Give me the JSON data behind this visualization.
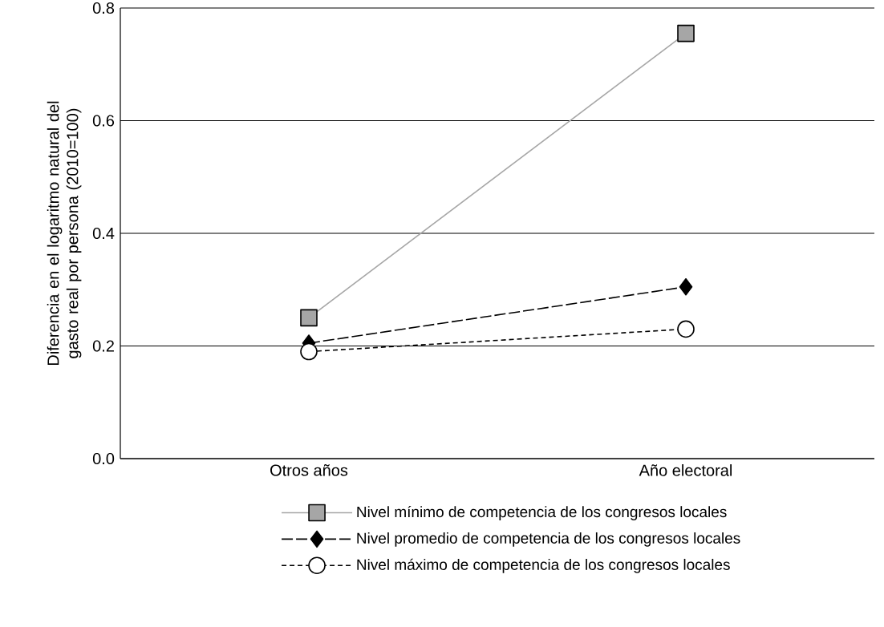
{
  "chart_data": {
    "type": "line",
    "ylabel": "Diferencia en el logaritmo natural del gasto real por persona (2010=100)",
    "categories": [
      "Otros años",
      "Año electoral"
    ],
    "series": [
      {
        "name": "Nivel mínimo de competencia de los congresos locales",
        "color": "#a6a6a6",
        "values": [
          0.25,
          0.755
        ],
        "marker": "square",
        "line_style": "solid"
      },
      {
        "name": "Nivel promedio de competencia de los congresos locales",
        "color": "#000000",
        "values": [
          0.205,
          0.305
        ],
        "marker": "diamond",
        "line_style": "dashed"
      },
      {
        "name": "Nivel máximo de competencia de los congresos locales",
        "color": "#000000",
        "values": [
          0.19,
          0.23
        ],
        "marker": "circle",
        "line_style": "dotted"
      }
    ],
    "ylim": [
      0,
      0.8
    ],
    "yticks": [
      {
        "value": 0,
        "label": "0.0"
      },
      0.2,
      0.4,
      0.6,
      0.8
    ],
    "grid": "y",
    "legend": "bottom"
  }
}
